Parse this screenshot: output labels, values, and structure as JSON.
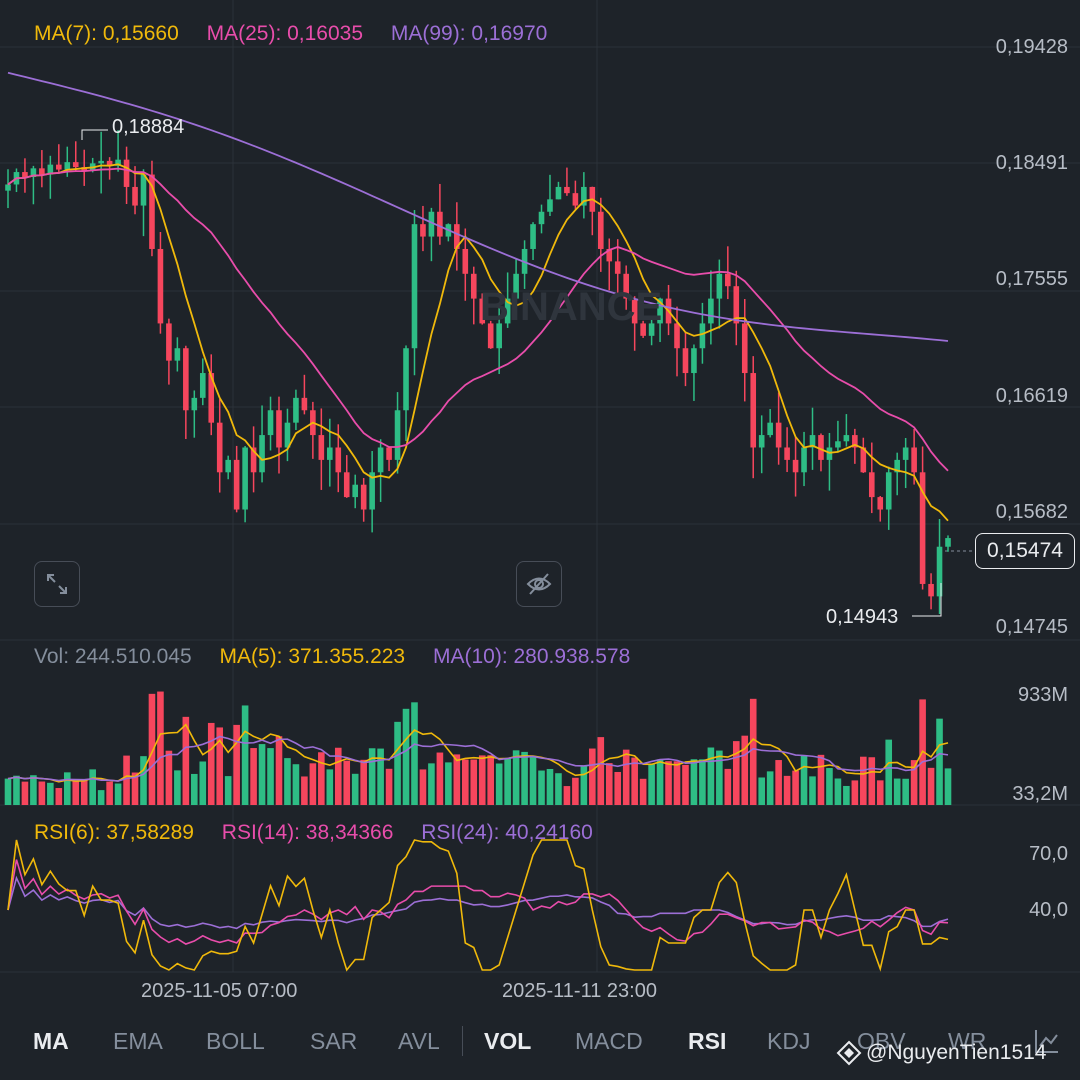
{
  "price_legend": {
    "ma7": "MA(7): 0,15660",
    "ma25": "MA(25): 0,16035",
    "ma99": "MA(99): 0,16970"
  },
  "price_axis": [
    "0,19428",
    "0,18491",
    "0,17555",
    "0,16619",
    "0,15682",
    "0,14745"
  ],
  "current_price": "0,15474",
  "high_annotation": "0,18884",
  "low_annotation": "0,14943",
  "vol_legend": {
    "vol": "Vol: 244.510.045",
    "ma5": "MA(5): 371.355.223",
    "ma10": "MA(10): 280.938.578"
  },
  "vol_axis": [
    "933M",
    "33,2M"
  ],
  "rsi_legend": {
    "rsi6": "RSI(6): 37,58289",
    "rsi14": "RSI(14): 38,34366",
    "rsi24": "RSI(24): 40,24160"
  },
  "rsi_axis": [
    "70,0",
    "40,0"
  ],
  "time_labels": [
    "2025-11-05 07:00",
    "2025-11-11 23:00"
  ],
  "tabs": [
    "MA",
    "EMA",
    "BOLL",
    "SAR",
    "AVL",
    "VOL",
    "MACD",
    "RSI",
    "KDJ",
    "OBV",
    "WR"
  ],
  "watermark": "@NguyenTien1514",
  "colors": {
    "background": "#1e2329",
    "up": "#2ebd85",
    "down": "#f6465d",
    "ma7": "#f0b90b",
    "ma25": "#e84dab",
    "ma99": "#9c6fd6"
  },
  "chart_data": {
    "type": "candlestick",
    "price_series_close": [
      0.1832,
      0.1842,
      0.1838,
      0.1845,
      0.184,
      0.1848,
      0.1844,
      0.185,
      0.1846,
      0.1843,
      0.1849,
      0.1851,
      0.1847,
      0.1852,
      0.183,
      0.1815,
      0.184,
      0.178,
      0.172,
      0.169,
      0.17,
      0.165,
      0.166,
      0.168,
      0.164,
      0.16,
      0.161,
      0.157,
      0.162,
      0.16,
      0.163,
      0.165,
      0.162,
      0.164,
      0.166,
      0.165,
      0.163,
      0.161,
      0.162,
      0.16,
      0.158,
      0.159,
      0.157,
      0.16,
      0.162,
      0.161,
      0.165,
      0.17,
      0.18,
      0.179,
      0.181,
      0.179,
      0.18,
      0.178,
      0.176,
      0.174,
      0.172,
      0.17,
      0.172,
      0.174,
      0.176,
      0.178,
      0.18,
      0.181,
      0.182,
      0.183,
      0.1825,
      0.1815,
      0.183,
      0.181,
      0.178,
      0.177,
      0.176,
      0.174,
      0.172,
      0.171,
      0.172,
      0.174,
      0.172,
      0.17,
      0.168,
      0.17,
      0.172,
      0.174,
      0.176,
      0.175,
      0.172,
      0.168,
      0.162,
      0.163,
      0.164,
      0.162,
      0.161,
      0.16,
      0.162,
      0.163,
      0.161,
      0.162,
      0.1625,
      0.163,
      0.162,
      0.16,
      0.158,
      0.157,
      0.16,
      0.161,
      0.162,
      0.16,
      0.151,
      0.15,
      0.154,
      0.1547
    ],
    "volume_axis_labels": [
      "933M",
      "33,2M"
    ],
    "rsi6_last": 37.58289,
    "rsi14_last": 38.34366,
    "rsi24_last": 40.2416
  }
}
